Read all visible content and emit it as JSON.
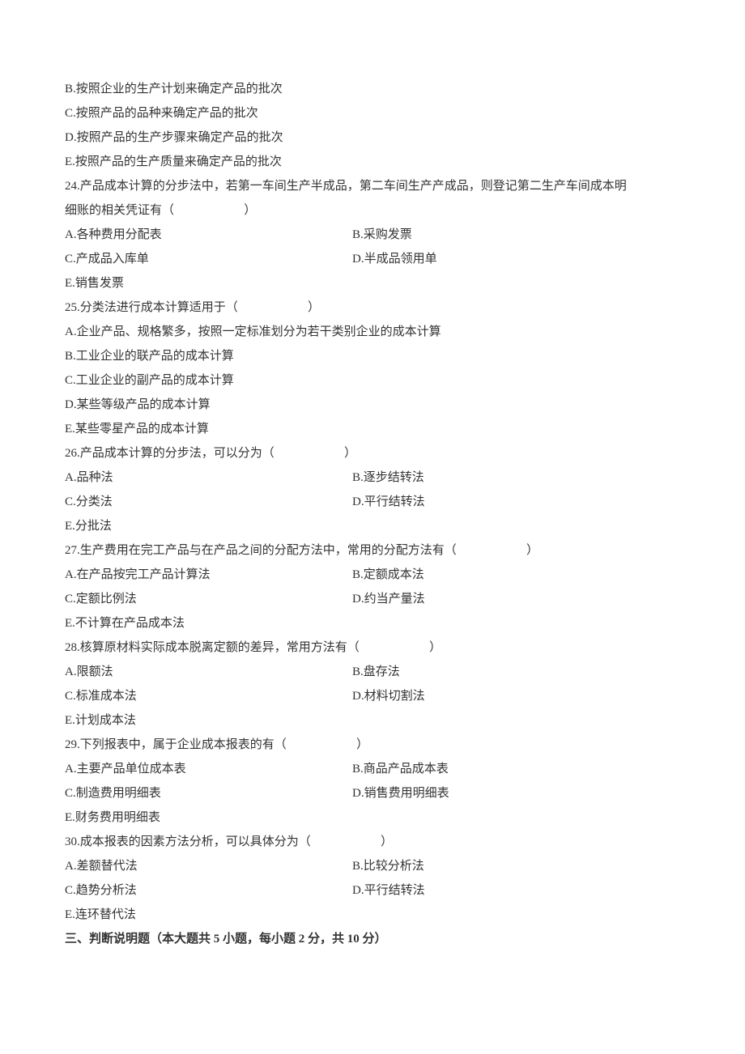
{
  "page": {
    "background_color": "#ffffff",
    "text_color": "#333333",
    "font_size_pt": 11,
    "line_height": 2.0
  },
  "intro_lines": [
    "B.按照企业的生产计划来确定产品的批次",
    "C.按照产品的品种来确定产品的批次",
    "D.按照产品的生产步骤来确定产品的批次",
    "E.按照产品的生产质量来确定产品的批次"
  ],
  "q24": {
    "stem1": "24.产品成本计算的分步法中，若第一车间生产半成品，第二车间生产产成品，则登记第二生产车间成本明",
    "stem2": "细账的相关凭证有（                       ）",
    "A": "A.各种费用分配表",
    "B": "B.采购发票",
    "C": "C.产成品入库单",
    "D": "D.半成品领用单",
    "E": "E.销售发票"
  },
  "q25": {
    "stem": "25.分类法进行成本计算适用于（                       ）",
    "A": "A.企业产品、规格繁多，按照一定标准划分为若干类别企业的成本计算",
    "B": "B.工业企业的联产品的成本计算",
    "C": "C.工业企业的副产品的成本计算",
    "D": "D.某些等级产品的成本计算",
    "E": "E.某些零星产品的成本计算"
  },
  "q26": {
    "stem": "26.产品成本计算的分步法，可以分为（                       ）",
    "A": "A.品种法",
    "B": "B.逐步结转法",
    "C": "C.分类法",
    "D": "D.平行结转法",
    "E": "E.分批法"
  },
  "q27": {
    "stem": "27.生产费用在完工产品与在产品之间的分配方法中，常用的分配方法有（                       ）",
    "A": "A.在产品按完工产品计算法",
    "B": "B.定额成本法",
    "C": "C.定额比例法",
    "D": "D.约当产量法",
    "E": "E.不计算在产品成本法"
  },
  "q28": {
    "stem": "28.核算原材料实际成本脱离定额的差异，常用方法有（                       ）",
    "A": "A.限额法",
    "B": "B.盘存法",
    "C": "C.标准成本法",
    "D": "D.材料切割法",
    "E": "E.计划成本法"
  },
  "q29": {
    "stem": "29.下列报表中，属于企业成本报表的有（                       ）",
    "A": "A.主要产品单位成本表",
    "B": "B.商品产品成本表",
    "C": "C.制造费用明细表",
    "D": "D.销售费用明细表",
    "E": "E.财务费用明细表"
  },
  "q30": {
    "stem": "30.成本报表的因素方法分析，可以具体分为（                       ）",
    "A": "A.差额替代法",
    "B": "B.比较分析法",
    "C": "C.趋势分析法",
    "D": "D.平行结转法",
    "E": "E.连环替代法"
  },
  "section3_heading": "三、判断说明题（本大题共 5 小题，每小题 2 分，共 10 分）"
}
